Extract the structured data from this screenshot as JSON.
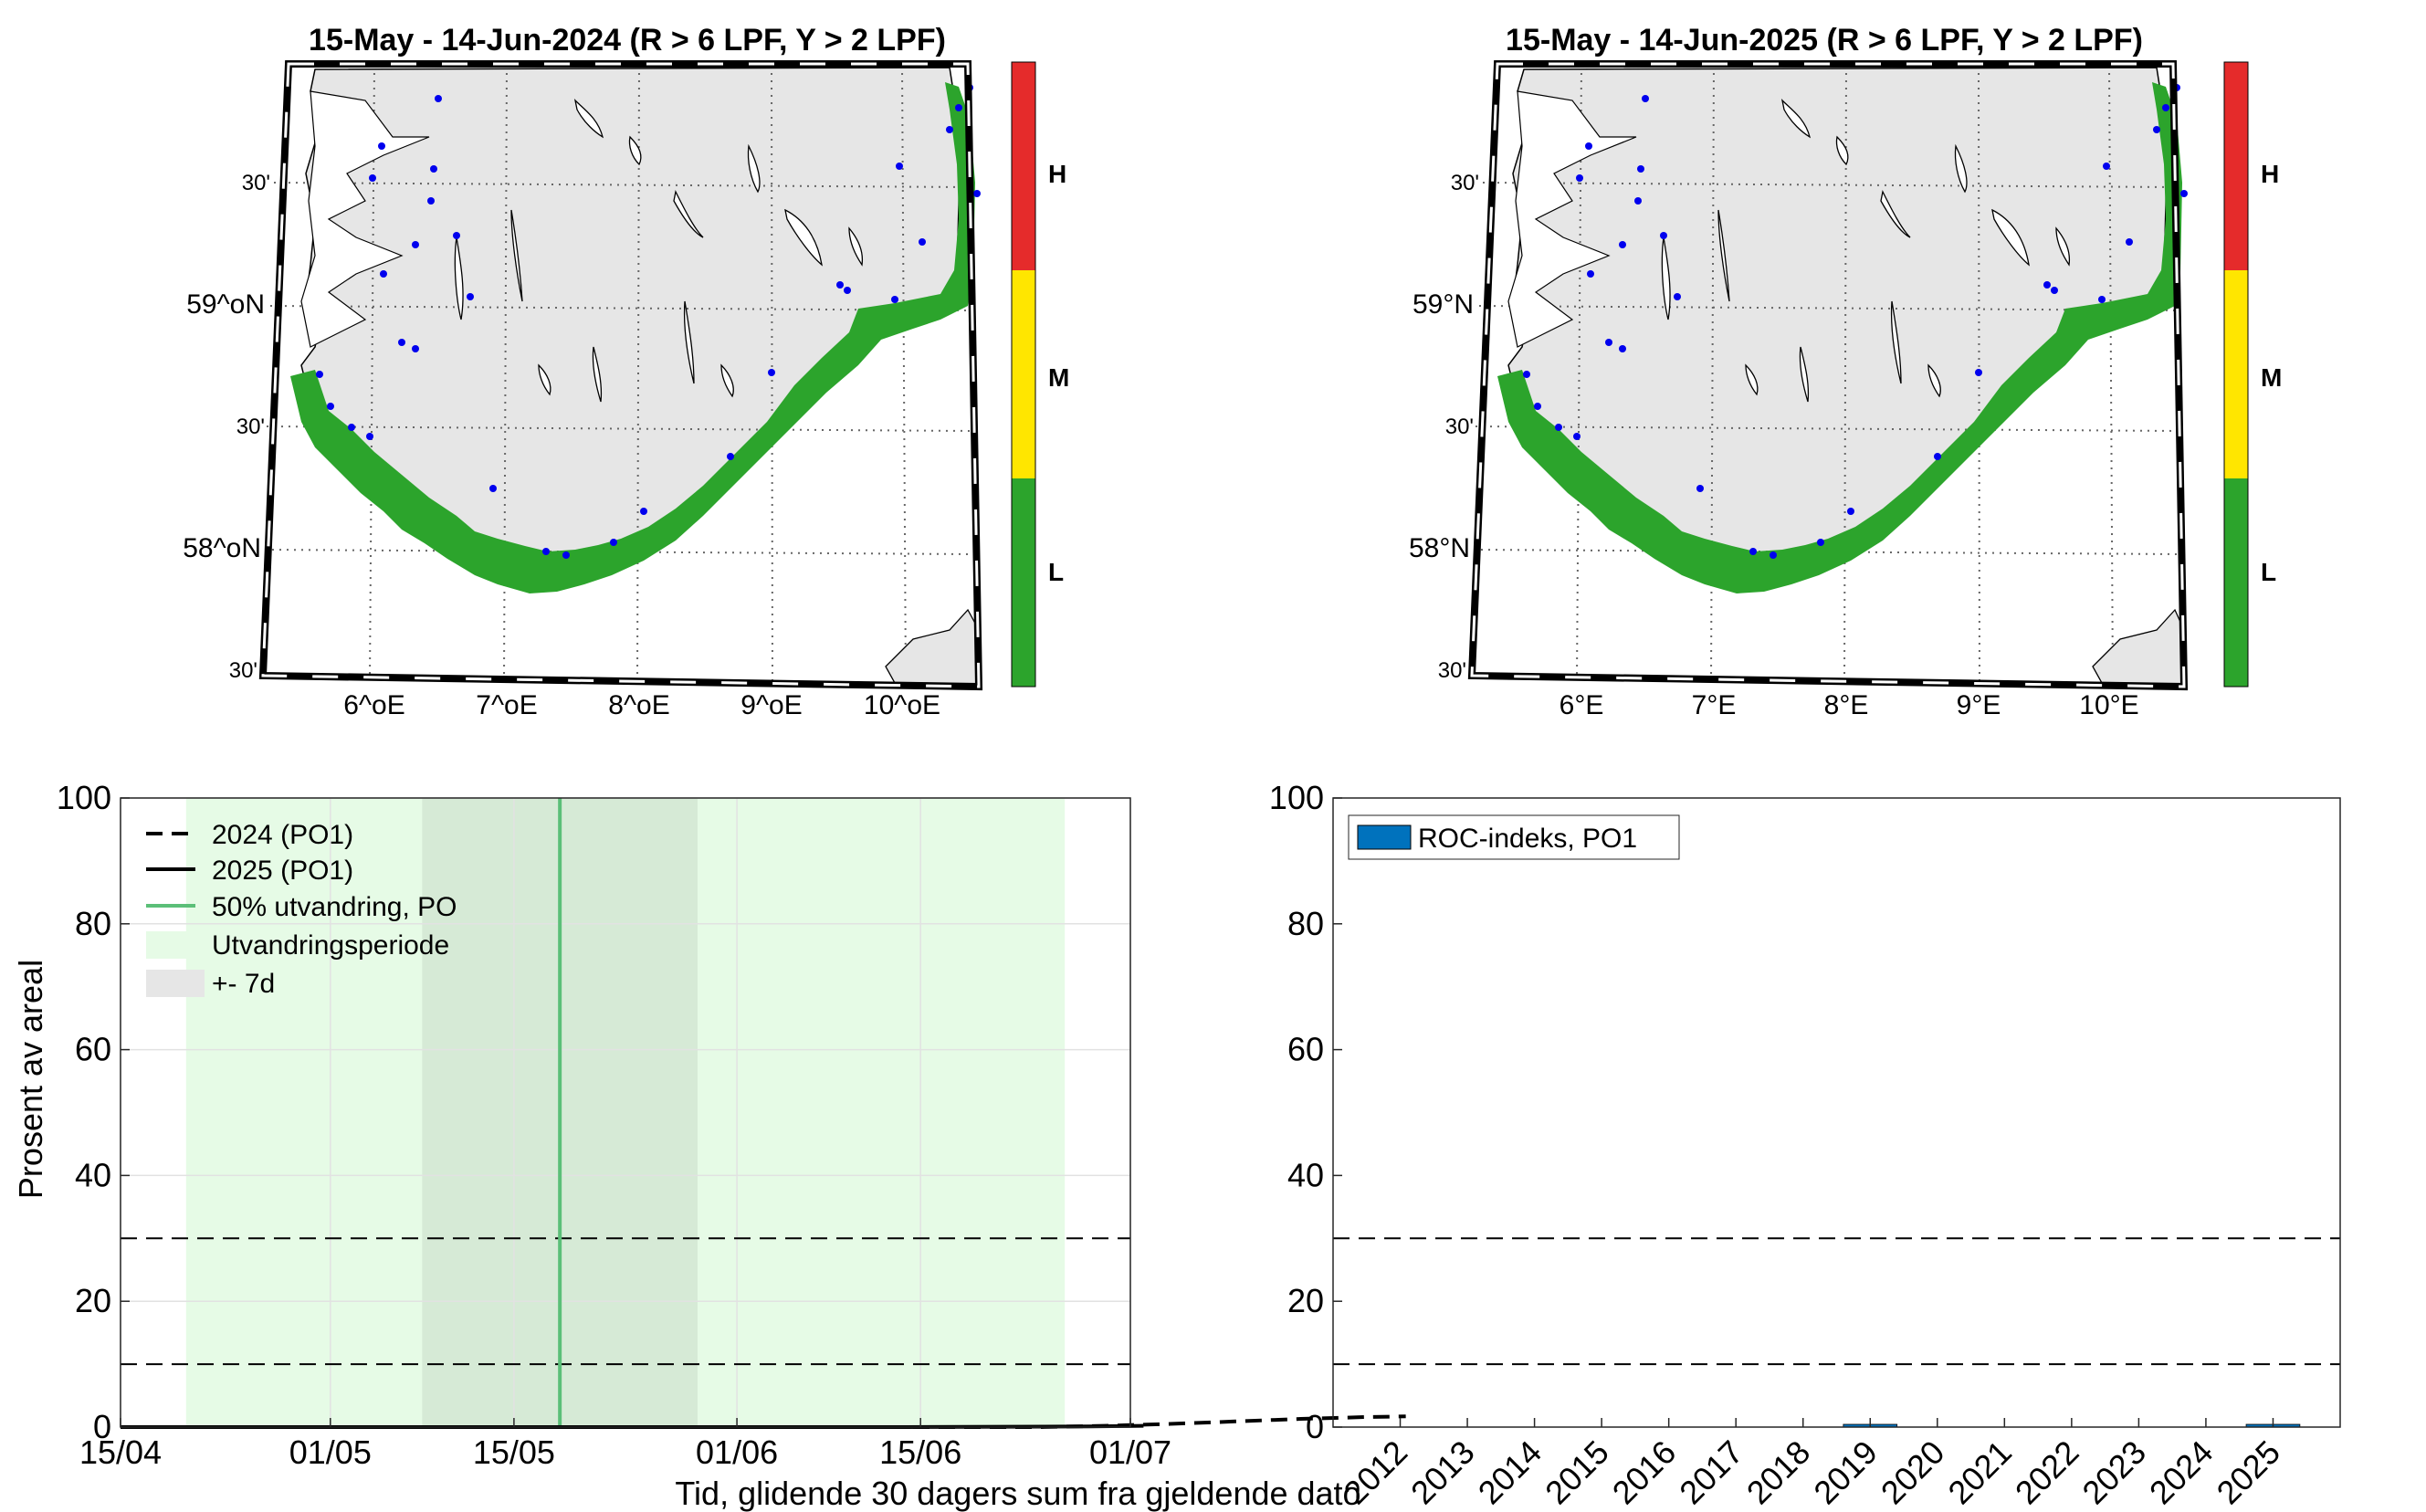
{
  "maps": [
    {
      "title": "15-May - 14-Jun-2024  (R > 6 LPF, Y > 2 LPF)",
      "lat_labels": [
        "30'",
        "59^oN",
        "30'",
        "58^oN",
        "30'"
      ],
      "lon_labels": [
        "6^oE",
        "7^oE",
        "8^oE",
        "9^oE",
        "10^oE"
      ],
      "legend_levels": [
        "H",
        "M",
        "L"
      ]
    },
    {
      "title": "15-May - 14-Jun-2025  (R > 6 LPF, Y > 2 LPF)",
      "lat_labels": [
        "30'",
        "59°N",
        "30'",
        "58°N",
        "30'"
      ],
      "lon_labels": [
        "6°E",
        "7°E",
        "8°E",
        "9°E",
        "10°E"
      ],
      "legend_levels": [
        "H",
        "M",
        "L"
      ]
    }
  ],
  "colors": {
    "high": "#e52b2b",
    "medium": "#ffe600",
    "low": "#2ca42c",
    "land": "#e6e6e6",
    "period": "#e6fbe6",
    "window": "#d6ead6",
    "fifty_line": "#5bbf78",
    "bar": "#0072bd"
  },
  "chart_data": [
    {
      "type": "line",
      "xlabel": "Tid, glidende 30 dagers sum fra gjeldende dato",
      "ylabel": "Prosent av areal",
      "xticks": [
        "15/04",
        "01/05",
        "15/05",
        "01/06",
        "15/06",
        "01/07"
      ],
      "x_start": "15/04",
      "x_end": "01/07",
      "ylim": [
        0,
        100
      ],
      "yticks": [
        0,
        20,
        40,
        60,
        80,
        100
      ],
      "grid": true,
      "legend_position": "top-left",
      "legend": [
        "2024 (PO1)",
        "2025 (PO1)",
        "50% utvandring, PO",
        "Utvandringsperiode",
        "+- 7d"
      ],
      "thresholds": [
        10,
        30
      ],
      "migration_period_days": [
        5,
        72
      ],
      "window_days": [
        23,
        44
      ],
      "fifty_percent_day": 33.5,
      "series": [
        {
          "name": "2024 (PO1)",
          "style": "dashed",
          "points": [
            [
              0,
              0
            ],
            [
              40,
              0
            ],
            [
              60,
              0
            ],
            [
              70,
              0
            ],
            [
              75,
              0.2
            ],
            [
              80,
              0.5
            ],
            [
              85,
              0.9
            ],
            [
              90,
              1.3
            ],
            [
              95,
              1.6
            ],
            [
              98,
              1.7
            ]
          ]
        },
        {
          "name": "2025 (PO1)",
          "style": "solid",
          "points": [
            [
              0,
              0
            ],
            [
              60,
              0
            ],
            [
              74,
              0.1
            ],
            [
              78,
              0.2
            ]
          ]
        }
      ]
    },
    {
      "type": "bar",
      "ylabel": "",
      "ylim": [
        0,
        100
      ],
      "yticks": [
        0,
        20,
        40,
        60,
        80,
        100
      ],
      "legend_position": "top-left",
      "legend": [
        "ROC-indeks, PO1"
      ],
      "thresholds": [
        10,
        30
      ],
      "categories": [
        "2012",
        "2013",
        "2014",
        "2015",
        "2016",
        "2017",
        "2018",
        "2019",
        "2020",
        "2021",
        "2022",
        "2023",
        "2024",
        "2025"
      ],
      "values": [
        0,
        0,
        0,
        0,
        0,
        0,
        0,
        0.4,
        0,
        0,
        0,
        0,
        0,
        0.1
      ]
    }
  ]
}
